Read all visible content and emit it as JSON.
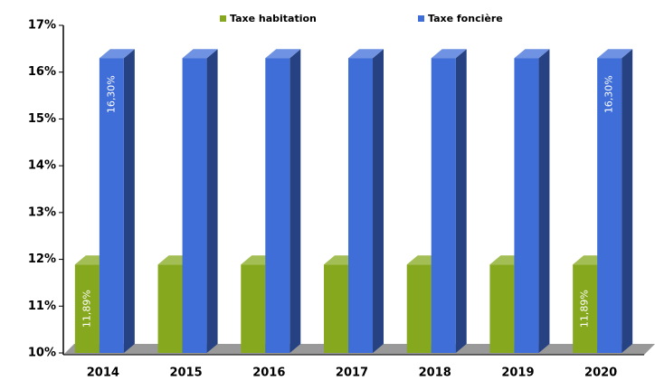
{
  "chart_data": {
    "type": "bar3d",
    "categories": [
      "2014",
      "2015",
      "2016",
      "2017",
      "2018",
      "2019",
      "2020"
    ],
    "series": [
      {
        "name": "Taxe habitation",
        "color": "#86a81e",
        "values": [
          11.89,
          11.89,
          11.89,
          11.89,
          11.89,
          11.89,
          11.89
        ],
        "value_labels": [
          "11,89%",
          null,
          null,
          null,
          null,
          null,
          "11,89%"
        ]
      },
      {
        "name": "Taxe foncière",
        "color": "#3f6ed8",
        "values": [
          16.3,
          16.3,
          16.3,
          16.3,
          16.3,
          16.3,
          16.3
        ],
        "value_labels": [
          "16,30%",
          null,
          null,
          null,
          null,
          null,
          "16,30%"
        ]
      }
    ],
    "ylim": [
      10,
      17
    ],
    "yticks": [
      {
        "value": 10,
        "label": "10%"
      },
      {
        "value": 11,
        "label": "11%"
      },
      {
        "value": 12,
        "label": "12%"
      },
      {
        "value": 13,
        "label": "13%"
      },
      {
        "value": 14,
        "label": "14%"
      },
      {
        "value": 15,
        "label": "15%"
      },
      {
        "value": 16,
        "label": "16%"
      },
      {
        "value": 17,
        "label": "17%"
      }
    ]
  }
}
